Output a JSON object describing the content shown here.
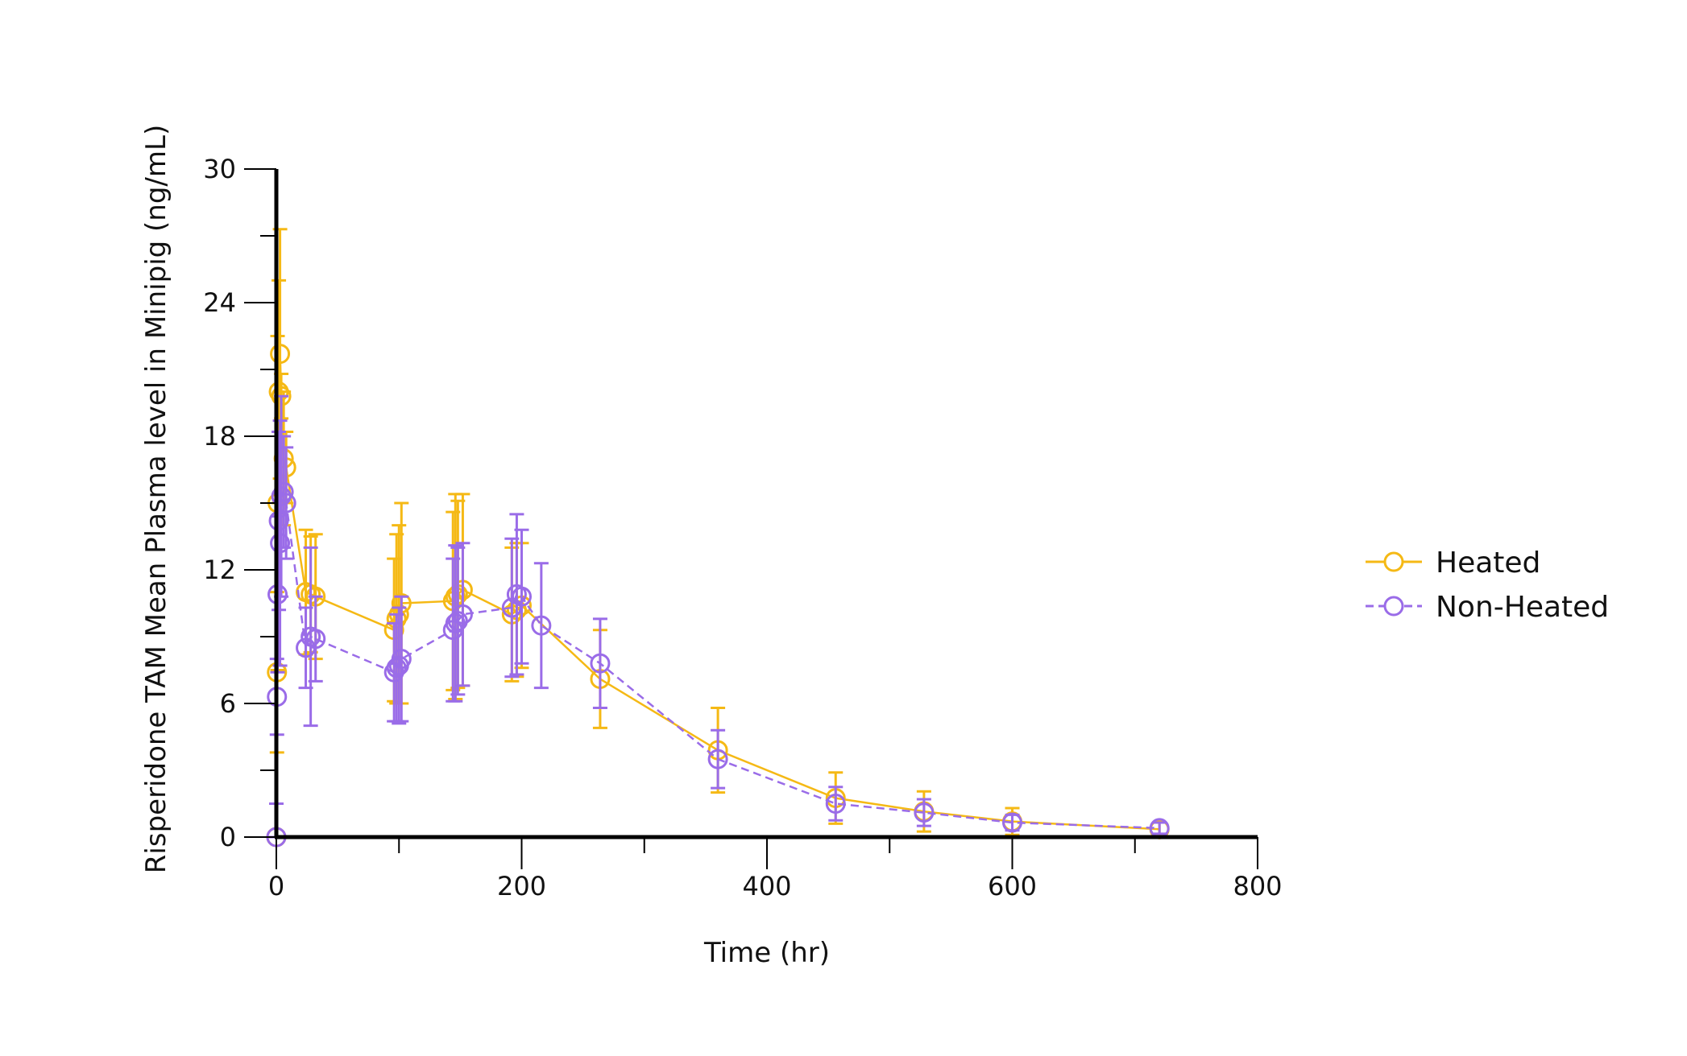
{
  "chart_data": {
    "type": "line",
    "title": "",
    "xlabel": "Time (hr)",
    "ylabel": "Risperidone TAM Mean Plasma level in Minipig (ng/mL)",
    "xlim": [
      0,
      800
    ],
    "ylim": [
      0,
      30
    ],
    "x_ticks": [
      "0",
      "200",
      "400",
      "600",
      "800"
    ],
    "y_ticks": [
      "0",
      "6",
      "12",
      "18",
      "24",
      "30"
    ],
    "grid": false,
    "legend_position": "right",
    "series": [
      {
        "name": "Heated",
        "color": "#F5B915",
        "line_style": "solid",
        "marker": "open-circle",
        "points": [
          {
            "x": 0,
            "y": 0,
            "err": 1.5
          },
          {
            "x": 0.5,
            "y": 7.4,
            "err": 3.6
          },
          {
            "x": 1,
            "y": 15.0,
            "err": 7.5
          },
          {
            "x": 2,
            "y": 20.0,
            "err": 5.0
          },
          {
            "x": 3,
            "y": 21.7,
            "err": 5.6
          },
          {
            "x": 4,
            "y": 19.8,
            "err": 1.0
          },
          {
            "x": 6,
            "y": 17.0,
            "err": 3.0
          },
          {
            "x": 8,
            "y": 16.6,
            "err": 1.6
          },
          {
            "x": 24,
            "y": 11.0,
            "err": 2.8
          },
          {
            "x": 28,
            "y": 10.9,
            "err": 2.6
          },
          {
            "x": 32,
            "y": 10.8,
            "err": 2.8
          },
          {
            "x": 96,
            "y": 9.3,
            "err": 3.2
          },
          {
            "x": 98,
            "y": 9.8,
            "err": 3.8
          },
          {
            "x": 100,
            "y": 10.0,
            "err": 4.0
          },
          {
            "x": 102,
            "y": 10.5,
            "err": 4.5
          },
          {
            "x": 144,
            "y": 10.6,
            "err": 4.0
          },
          {
            "x": 146,
            "y": 10.8,
            "err": 4.6
          },
          {
            "x": 148,
            "y": 10.9,
            "err": 4.2
          },
          {
            "x": 152,
            "y": 11.1,
            "err": 4.3
          },
          {
            "x": 192,
            "y": 10.0,
            "err": 3.0
          },
          {
            "x": 196,
            "y": 10.2,
            "err": 3.0
          },
          {
            "x": 200,
            "y": 10.4,
            "err": 2.8
          },
          {
            "x": 264,
            "y": 7.1,
            "err": 2.2
          },
          {
            "x": 360,
            "y": 3.9,
            "err": 1.9
          },
          {
            "x": 456,
            "y": 1.75,
            "err": 1.15
          },
          {
            "x": 528,
            "y": 1.15,
            "err": 0.9
          },
          {
            "x": 600,
            "y": 0.7,
            "err": 0.6
          },
          {
            "x": 720,
            "y": 0.35,
            "err": 0.3
          }
        ]
      },
      {
        "name": "Non-Heated",
        "color": "#9A6CE8",
        "line_style": "dashed",
        "marker": "open-circle",
        "points": [
          {
            "x": 0,
            "y": 0,
            "err": 1.5
          },
          {
            "x": 0.5,
            "y": 6.3,
            "err": 1.7
          },
          {
            "x": 1,
            "y": 10.9,
            "err": 3.5
          },
          {
            "x": 2,
            "y": 14.2,
            "err": 4.0
          },
          {
            "x": 3,
            "y": 13.2,
            "err": 5.5
          },
          {
            "x": 4,
            "y": 15.3,
            "err": 4.5
          },
          {
            "x": 6,
            "y": 15.5,
            "err": 2.5
          },
          {
            "x": 8,
            "y": 15.0,
            "err": 2.5
          },
          {
            "x": 24,
            "y": 8.5,
            "err": 1.8
          },
          {
            "x": 28,
            "y": 9.0,
            "err": 4.0
          },
          {
            "x": 32,
            "y": 8.9,
            "err": 1.9
          },
          {
            "x": 96,
            "y": 7.4,
            "err": 2.2
          },
          {
            "x": 98,
            "y": 7.6,
            "err": 2.4
          },
          {
            "x": 100,
            "y": 7.7,
            "err": 2.6
          },
          {
            "x": 102,
            "y": 8.0,
            "err": 2.8
          },
          {
            "x": 144,
            "y": 9.3,
            "err": 3.2
          },
          {
            "x": 146,
            "y": 9.6,
            "err": 3.5
          },
          {
            "x": 148,
            "y": 9.7,
            "err": 3.3
          },
          {
            "x": 152,
            "y": 10.0,
            "err": 3.2
          },
          {
            "x": 192,
            "y": 10.3,
            "err": 3.1
          },
          {
            "x": 196,
            "y": 10.9,
            "err": 3.6
          },
          {
            "x": 200,
            "y": 10.8,
            "err": 3.0
          },
          {
            "x": 216,
            "y": 9.5,
            "err": 2.8
          },
          {
            "x": 264,
            "y": 7.8,
            "err": 2.0
          },
          {
            "x": 360,
            "y": 3.5,
            "err": 1.3
          },
          {
            "x": 456,
            "y": 1.5,
            "err": 0.75
          },
          {
            "x": 528,
            "y": 1.1,
            "err": 0.6
          },
          {
            "x": 600,
            "y": 0.65,
            "err": 0.35
          },
          {
            "x": 720,
            "y": 0.4,
            "err": 0.25
          }
        ]
      }
    ]
  }
}
